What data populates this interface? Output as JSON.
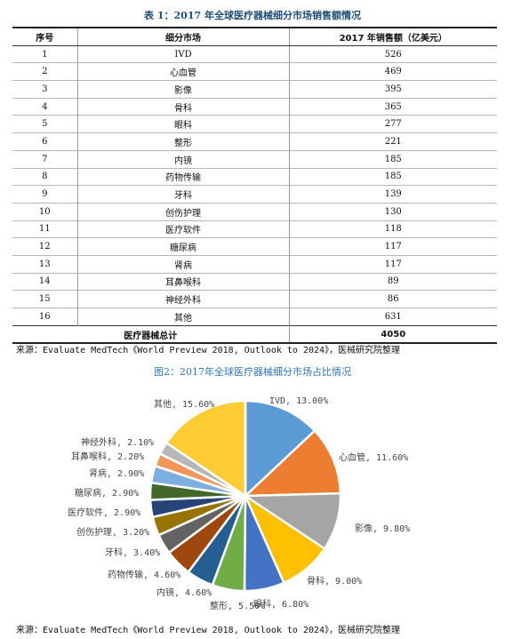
{
  "table": {
    "title": "表 1：2017 年全球医疗器械细分市场销售额情况",
    "headers": [
      "序号",
      "细分市场",
      "2017 年销售额（亿美元）"
    ],
    "rows": [
      [
        "1",
        "IVD",
        "526"
      ],
      [
        "2",
        "心血管",
        "469"
      ],
      [
        "3",
        "影像",
        "395"
      ],
      [
        "4",
        "骨科",
        "365"
      ],
      [
        "5",
        "眼科",
        "277"
      ],
      [
        "6",
        "整形",
        "221"
      ],
      [
        "7",
        "内镜",
        "185"
      ],
      [
        "8",
        "药物传输",
        "185"
      ],
      [
        "9",
        "牙科",
        "139"
      ],
      [
        "10",
        "创伤护理",
        "130"
      ],
      [
        "11",
        "医疗软件",
        "118"
      ],
      [
        "12",
        "糖尿病",
        "117"
      ],
      [
        "13",
        "肾病",
        "117"
      ],
      [
        "14",
        "耳鼻喉科",
        "89"
      ],
      [
        "15",
        "神经外科",
        "86"
      ],
      [
        "16",
        "其他",
        "631"
      ]
    ],
    "total_label": "医疗器械总计",
    "total_value": "4050",
    "source": "来源：Evaluate MedTech《World Preview 2018, Outlook to 2024》，医械研究院整理"
  },
  "chart": {
    "title": "图2：2017年全球医疗器械细分市场占比情况",
    "source": "来源：Evaluate MedTech《World Preview 2018, Outlook to 2024》，医械研究院整理"
  },
  "chart_data": {
    "type": "pie",
    "title": "图2：2017年全球医疗器械细分市场占比情况",
    "slices": [
      {
        "label": "IVD",
        "value": 13.0,
        "text": "IVD, 13.00%",
        "color": "#5b9bd5"
      },
      {
        "label": "心血管",
        "value": 11.6,
        "text": "心血管, 11.60%",
        "color": "#ed7d31"
      },
      {
        "label": "影像",
        "value": 9.8,
        "text": "影像, 9.80%",
        "color": "#a5a5a5"
      },
      {
        "label": "骨科",
        "value": 9.0,
        "text": "骨科, 9.00%",
        "color": "#ffc000"
      },
      {
        "label": "眼科",
        "value": 6.8,
        "text": "眼科, 6.80%",
        "color": "#4472c4"
      },
      {
        "label": "整形",
        "value": 5.5,
        "text": "整形, 5.50%",
        "color": "#70ad47"
      },
      {
        "label": "内镜",
        "value": 4.6,
        "text": "内镜, 4.60%",
        "color": "#255e91"
      },
      {
        "label": "药物传输",
        "value": 4.6,
        "text": "药物传输, 4.60%",
        "color": "#9e480e"
      },
      {
        "label": "牙科",
        "value": 3.4,
        "text": "牙科, 3.40%",
        "color": "#636363"
      },
      {
        "label": "创伤护理",
        "value": 3.2,
        "text": "创伤护理, 3.20%",
        "color": "#997300"
      },
      {
        "label": "医疗软件",
        "value": 2.9,
        "text": "医疗软件, 2.90%",
        "color": "#264478"
      },
      {
        "label": "糖尿病",
        "value": 2.9,
        "text": "糖尿病, 2.90%",
        "color": "#43682b"
      },
      {
        "label": "肾病",
        "value": 2.9,
        "text": "肾病, 2.90%",
        "color": "#7cafdd"
      },
      {
        "label": "耳鼻喉科",
        "value": 2.2,
        "text": "耳鼻喉科, 2.20%",
        "color": "#f1975a"
      },
      {
        "label": "神经外科",
        "value": 2.1,
        "text": "神经外科, 2.10%",
        "color": "#b7b7b7"
      },
      {
        "label": "其他",
        "value": 15.6,
        "text": "其他, 15.60%",
        "color": "#ffcd33"
      }
    ]
  }
}
